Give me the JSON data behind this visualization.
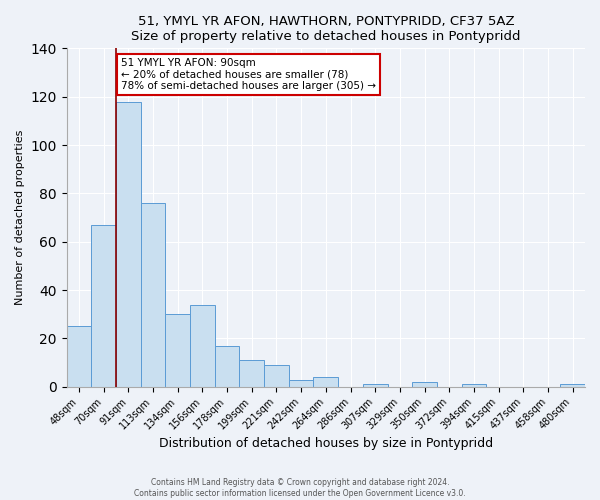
{
  "title": "51, YMYL YR AFON, HAWTHORN, PONTYPRIDD, CF37 5AZ",
  "subtitle": "Size of property relative to detached houses in Pontypridd",
  "xlabel": "Distribution of detached houses by size in Pontypridd",
  "ylabel": "Number of detached properties",
  "bar_labels": [
    "48sqm",
    "70sqm",
    "91sqm",
    "113sqm",
    "134sqm",
    "156sqm",
    "178sqm",
    "199sqm",
    "221sqm",
    "242sqm",
    "264sqm",
    "286sqm",
    "307sqm",
    "329sqm",
    "350sqm",
    "372sqm",
    "394sqm",
    "415sqm",
    "437sqm",
    "458sqm",
    "480sqm"
  ],
  "bar_values": [
    25,
    67,
    118,
    76,
    30,
    34,
    17,
    11,
    9,
    3,
    4,
    0,
    1,
    0,
    2,
    0,
    1,
    0,
    0,
    0,
    1
  ],
  "bar_color": "#c9dff0",
  "bar_edge_color": "#5b9bd5",
  "marker_label": "51 YMYL YR AFON: 90sqm",
  "annotation_line1": "← 20% of detached houses are smaller (78)",
  "annotation_line2": "78% of semi-detached houses are larger (305) →",
  "marker_line_color": "#8b0000",
  "ylim": [
    0,
    140
  ],
  "yticks": [
    0,
    20,
    40,
    60,
    80,
    100,
    120,
    140
  ],
  "footer_line1": "Contains HM Land Registry data © Crown copyright and database right 2024.",
  "footer_line2": "Contains public sector information licensed under the Open Government Licence v3.0.",
  "background_color": "#eef2f8",
  "annotation_box_edge_color": "#cc0000",
  "grid_color": "#ffffff"
}
